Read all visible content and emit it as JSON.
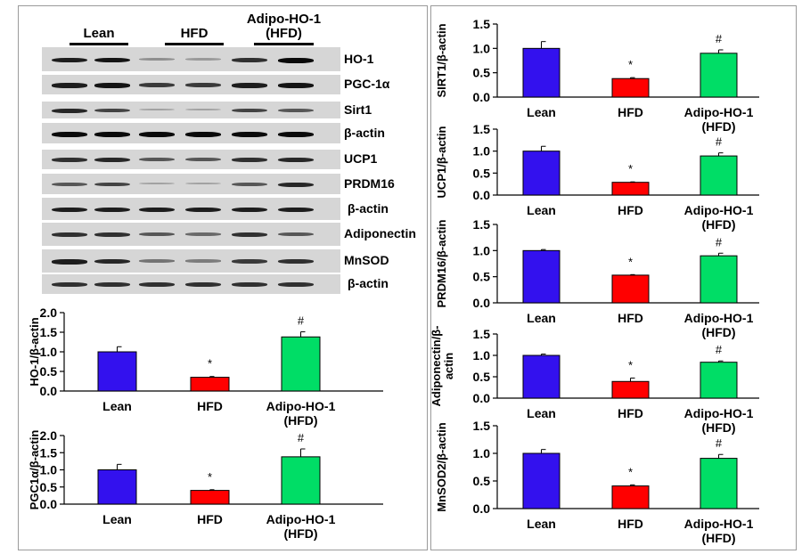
{
  "colors": {
    "lean": "#3311ee",
    "hfd": "#ff0000",
    "adipo": "#00dd66",
    "panel_border": "#9a9a9a"
  },
  "blot": {
    "groups": [
      {
        "label_lines": [
          "Lean"
        ]
      },
      {
        "label_lines": [
          "HFD"
        ]
      },
      {
        "label_lines": [
          "Adipo-HO-1",
          "(HFD)"
        ]
      }
    ],
    "rows": [
      {
        "label": "HO-1",
        "intensity": [
          0.9,
          0.95,
          0.3,
          0.25,
          0.8,
          1.0
        ]
      },
      {
        "label": "PGC-1α",
        "intensity": [
          0.9,
          0.95,
          0.75,
          0.75,
          0.9,
          0.95
        ]
      },
      {
        "label": "Sirt1",
        "intensity": [
          0.85,
          0.7,
          0.2,
          0.2,
          0.7,
          0.6
        ]
      },
      {
        "label": "β-actin",
        "intensity": [
          1.0,
          1.0,
          1.0,
          1.0,
          1.0,
          1.0
        ]
      },
      {
        "label": "UCP1",
        "intensity": [
          0.8,
          0.85,
          0.6,
          0.6,
          0.8,
          0.85
        ]
      },
      {
        "label": "PRDM16",
        "intensity": [
          0.6,
          0.7,
          0.2,
          0.2,
          0.6,
          0.85
        ]
      },
      {
        "label": "β-actin",
        "intensity": [
          0.9,
          0.9,
          0.9,
          0.9,
          0.9,
          0.9
        ]
      },
      {
        "label": "Adiponectin",
        "intensity": [
          0.8,
          0.8,
          0.6,
          0.5,
          0.8,
          0.6
        ]
      },
      {
        "label": "MnSOD",
        "intensity": [
          0.9,
          0.85,
          0.45,
          0.4,
          0.75,
          0.8
        ]
      },
      {
        "label": "β-actin",
        "intensity": [
          0.8,
          0.8,
          0.8,
          0.8,
          0.8,
          0.8
        ]
      }
    ]
  },
  "chart_data": [
    {
      "id": "ho1",
      "type": "bar",
      "ylabel": [
        "HO-1/β-actin"
      ],
      "categories": [
        "Lean",
        "HFD",
        "Adipo-HO-1\n(HFD)"
      ],
      "values": [
        1.0,
        0.35,
        1.38
      ],
      "errors": [
        0.13,
        0.02,
        0.13
      ],
      "annotations": [
        "",
        "*",
        "#"
      ],
      "ylim": [
        0,
        2.0
      ],
      "yticks": [
        "0.0",
        "0.5",
        "1.0",
        "1.5",
        "2.0"
      ]
    },
    {
      "id": "pgc1a",
      "type": "bar",
      "ylabel": [
        "PGC1α/β-actin"
      ],
      "categories": [
        "Lean",
        "HFD",
        "Adipo-HO-1\n(HFD)"
      ],
      "values": [
        1.0,
        0.4,
        1.38
      ],
      "errors": [
        0.16,
        0.02,
        0.23
      ],
      "annotations": [
        "",
        "*",
        "#"
      ],
      "ylim": [
        0,
        2.0
      ],
      "yticks": [
        "0.0",
        "0.5",
        "1.0",
        "1.5",
        "2.0"
      ]
    },
    {
      "id": "sirt1",
      "type": "bar",
      "ylabel": [
        "SIRT1/β-actin"
      ],
      "categories": [
        "Lean",
        "HFD",
        "Adipo-HO-1\n(HFD)"
      ],
      "values": [
        1.0,
        0.38,
        0.9
      ],
      "errors": [
        0.14,
        0.02,
        0.07
      ],
      "annotations": [
        "",
        "*",
        "#"
      ],
      "ylim": [
        0,
        1.5
      ],
      "yticks": [
        "0.0",
        "0.5",
        "1.0",
        "1.5"
      ]
    },
    {
      "id": "ucp1",
      "type": "bar",
      "ylabel": [
        "UCP1/β-actin"
      ],
      "categories": [
        "Lean",
        "HFD",
        "Adipo-HO-1\n(HFD)"
      ],
      "values": [
        1.0,
        0.29,
        0.89
      ],
      "errors": [
        0.11,
        0.01,
        0.07
      ],
      "annotations": [
        "",
        "*",
        "#"
      ],
      "ylim": [
        0,
        1.5
      ],
      "yticks": [
        "0.0",
        "0.5",
        "1.0",
        "1.5"
      ]
    },
    {
      "id": "prdm16",
      "type": "bar",
      "ylabel": [
        "PRDM16/β-actin"
      ],
      "categories": [
        "Lean",
        "HFD",
        "Adipo-HO-1\n(HFD)"
      ],
      "values": [
        1.0,
        0.53,
        0.9
      ],
      "errors": [
        0.02,
        0.01,
        0.05
      ],
      "annotations": [
        "",
        "*",
        "#"
      ],
      "ylim": [
        0,
        1.5
      ],
      "yticks": [
        "0.0",
        "0.5",
        "1.0",
        "1.5"
      ]
    },
    {
      "id": "adiponectin",
      "type": "bar",
      "ylabel": [
        "Adiponectin/β-",
        "actin"
      ],
      "categories": [
        "Lean",
        "HFD",
        "Adipo-HO-1\n(HFD)"
      ],
      "values": [
        1.0,
        0.39,
        0.84
      ],
      "errors": [
        0.03,
        0.08,
        0.03
      ],
      "annotations": [
        "",
        "*",
        "#"
      ],
      "ylim": [
        0,
        1.5
      ],
      "yticks": [
        "0.0",
        "0.5",
        "1.0",
        "1.5"
      ]
    },
    {
      "id": "mnsod2",
      "type": "bar",
      "ylabel": [
        "MnSOD2/β-actin"
      ],
      "categories": [
        "Lean",
        "HFD",
        "Adipo-HO-1\n(HFD)"
      ],
      "values": [
        1.0,
        0.41,
        0.91
      ],
      "errors": [
        0.07,
        0.02,
        0.07
      ],
      "annotations": [
        "",
        "*",
        "#"
      ],
      "ylim": [
        0,
        1.5
      ],
      "yticks": [
        "0.0",
        "0.5",
        "1.0",
        "1.5"
      ]
    }
  ]
}
